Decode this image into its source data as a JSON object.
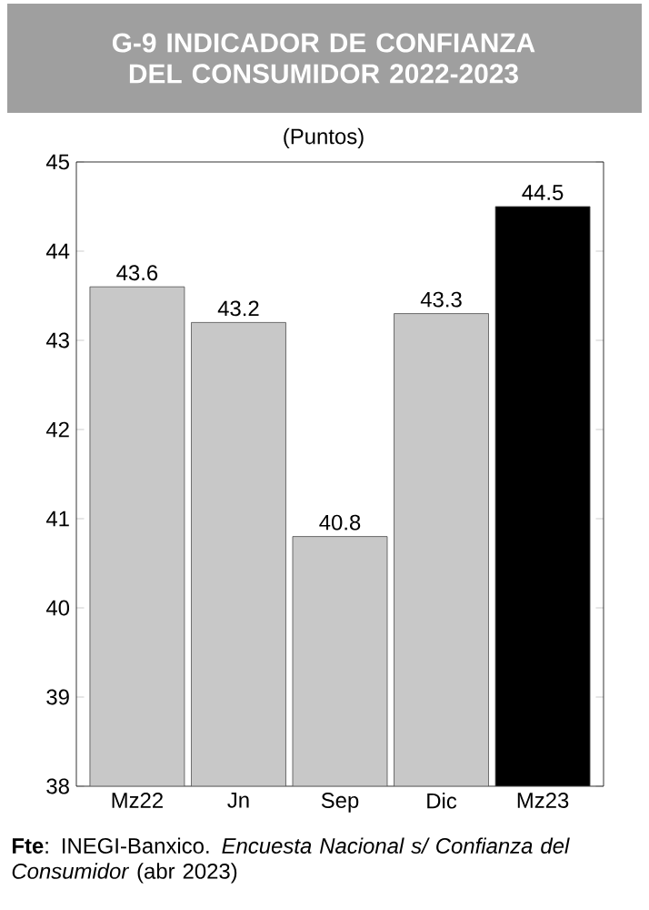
{
  "chart_data": {
    "type": "bar",
    "title": "G-9  INDICADOR DE CONFIANZA DEL CONSUMIDOR 2022-2023",
    "subtitle": "(Puntos)",
    "categories": [
      "Mz22",
      "Jn",
      "Sep",
      "Dic",
      "Mz23"
    ],
    "values": [
      43.6,
      43.2,
      40.8,
      43.3,
      44.5
    ],
    "colors": [
      "#c8c8c8",
      "#c8c8c8",
      "#c8c8c8",
      "#c8c8c8",
      "#000000"
    ],
    "ylim": [
      38,
      45
    ],
    "yticks": [
      38,
      39,
      40,
      41,
      42,
      43,
      44,
      45
    ],
    "data_labels": true,
    "grid": false,
    "annotations": [
      "**Fte**: INEGI-Banxico. *Encuesta Nacional s/ Confianza del Consumidor* (abr 2023)"
    ]
  }
}
